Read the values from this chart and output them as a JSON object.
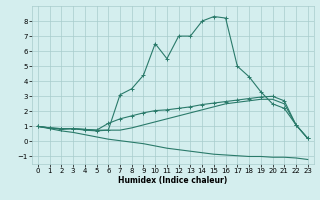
{
  "xlabel": "Humidex (Indice chaleur)",
  "x": [
    0,
    1,
    2,
    3,
    4,
    5,
    6,
    7,
    8,
    9,
    10,
    11,
    12,
    13,
    14,
    15,
    16,
    17,
    18,
    19,
    20,
    21,
    22,
    23
  ],
  "line1": [
    1.0,
    0.9,
    0.8,
    0.85,
    0.75,
    0.7,
    0.75,
    3.1,
    3.5,
    4.4,
    6.5,
    5.5,
    7.0,
    7.0,
    8.0,
    8.3,
    8.2,
    5.0,
    4.3,
    3.3,
    2.5,
    2.2,
    1.1,
    0.2
  ],
  "line2": [
    1.0,
    0.9,
    0.85,
    0.85,
    0.8,
    0.75,
    1.2,
    1.5,
    1.7,
    1.9,
    2.05,
    2.1,
    2.2,
    2.3,
    2.45,
    2.55,
    2.65,
    2.75,
    2.85,
    2.95,
    3.0,
    2.7,
    1.1,
    0.2
  ],
  "line3": [
    1.0,
    0.9,
    0.85,
    0.85,
    0.8,
    0.75,
    0.75,
    0.75,
    0.9,
    1.1,
    1.3,
    1.5,
    1.7,
    1.9,
    2.1,
    2.3,
    2.5,
    2.6,
    2.7,
    2.8,
    2.8,
    2.5,
    1.1,
    0.2
  ],
  "line4": [
    1.0,
    0.85,
    0.7,
    0.6,
    0.45,
    0.3,
    0.15,
    0.05,
    -0.05,
    -0.15,
    -0.3,
    -0.45,
    -0.55,
    -0.65,
    -0.75,
    -0.85,
    -0.9,
    -0.95,
    -1.0,
    -1.0,
    -1.05,
    -1.05,
    -1.1,
    -1.2
  ],
  "line_color": "#2a7a6a",
  "bg_color": "#d4eeee",
  "grid_color": "#a8cccc",
  "xlim": [
    -0.5,
    23.5
  ],
  "ylim": [
    -1.5,
    9.0
  ],
  "yticks": [
    -1,
    0,
    1,
    2,
    3,
    4,
    5,
    6,
    7,
    8
  ],
  "xticks": [
    0,
    1,
    2,
    3,
    4,
    5,
    6,
    7,
    8,
    9,
    10,
    11,
    12,
    13,
    14,
    15,
    16,
    17,
    18,
    19,
    20,
    21,
    22,
    23
  ]
}
